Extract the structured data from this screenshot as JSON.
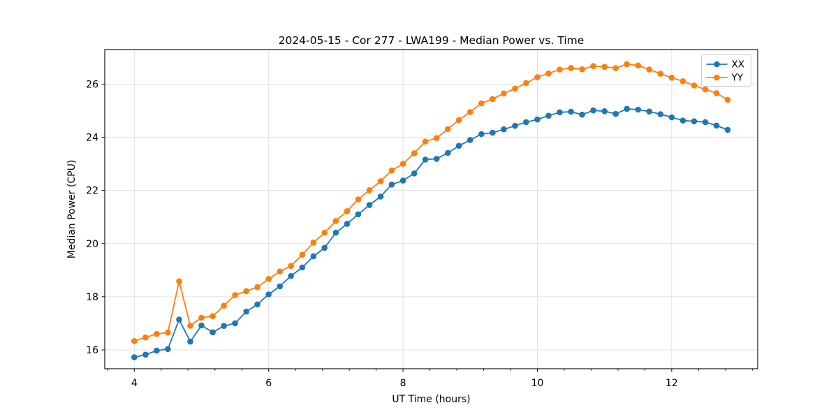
{
  "chart_data": {
    "type": "line",
    "title": "2024-05-15 - Cor 277 - LWA199 - Median Power vs. Time",
    "xlabel": "UT Time (hours)",
    "ylabel": "Median Power (CPU)",
    "xlim": [
      3.56,
      13.28
    ],
    "ylim": [
      15.29,
      27.3
    ],
    "xticks": [
      "4",
      "6",
      "8",
      "10",
      "12"
    ],
    "yticks": [
      "16",
      "18",
      "20",
      "22",
      "24",
      "26"
    ],
    "x_minor_tick_step": 0.4,
    "grid": true,
    "legend": {
      "position": "upper right",
      "entries": [
        {
          "label": "XX",
          "color": "#1f77b4"
        },
        {
          "label": "YY",
          "color": "#ff7f0e"
        }
      ]
    },
    "x": [
      4.0,
      4.167,
      4.333,
      4.5,
      4.667,
      4.833,
      5.0,
      5.167,
      5.333,
      5.5,
      5.667,
      5.833,
      6.0,
      6.167,
      6.333,
      6.5,
      6.667,
      6.833,
      7.0,
      7.167,
      7.333,
      7.5,
      7.667,
      7.833,
      8.0,
      8.167,
      8.333,
      8.5,
      8.667,
      8.833,
      9.0,
      9.167,
      9.333,
      9.5,
      9.667,
      9.833,
      10.0,
      10.167,
      10.333,
      10.5,
      10.667,
      10.833,
      11.0,
      11.167,
      11.333,
      11.5,
      11.667,
      11.833,
      12.0,
      12.167,
      12.333,
      12.5,
      12.667,
      12.833
    ],
    "series": [
      {
        "name": "XX",
        "color": "#1f77b4",
        "marker": "circle",
        "values": [
          15.72,
          15.82,
          15.97,
          16.03,
          17.14,
          16.31,
          16.92,
          16.66,
          16.9,
          17.0,
          17.44,
          17.71,
          18.09,
          18.39,
          18.78,
          19.1,
          19.52,
          19.84,
          20.41,
          20.74,
          21.1,
          21.45,
          21.77,
          22.22,
          22.37,
          22.64,
          23.16,
          23.19,
          23.41,
          23.68,
          23.9,
          24.12,
          24.17,
          24.3,
          24.43,
          24.57,
          24.67,
          24.81,
          24.94,
          24.96,
          24.85,
          25.01,
          24.98,
          24.88,
          25.07,
          25.04,
          24.97,
          24.87,
          24.75,
          24.63,
          24.6,
          24.57,
          24.44,
          24.28
        ]
      },
      {
        "name": "YY",
        "color": "#ff7f0e",
        "marker": "circle",
        "values": [
          16.33,
          16.47,
          16.6,
          16.65,
          18.58,
          16.91,
          17.21,
          17.27,
          17.66,
          18.06,
          18.21,
          18.36,
          18.67,
          18.95,
          19.16,
          19.58,
          20.04,
          20.41,
          20.85,
          21.22,
          21.66,
          22.01,
          22.35,
          22.75,
          23.0,
          23.4,
          23.84,
          23.97,
          24.31,
          24.65,
          24.95,
          25.28,
          25.44,
          25.65,
          25.83,
          26.04,
          26.26,
          26.4,
          26.55,
          26.61,
          26.56,
          26.68,
          26.65,
          26.6,
          26.75,
          26.7,
          26.55,
          26.39,
          26.24,
          26.11,
          25.95,
          25.8,
          25.66,
          25.41
        ]
      }
    ]
  },
  "style": {
    "grid_color": "#e0e0e0",
    "spine_color": "#000000",
    "background": "#ffffff",
    "legend_border": "#cccccc"
  }
}
